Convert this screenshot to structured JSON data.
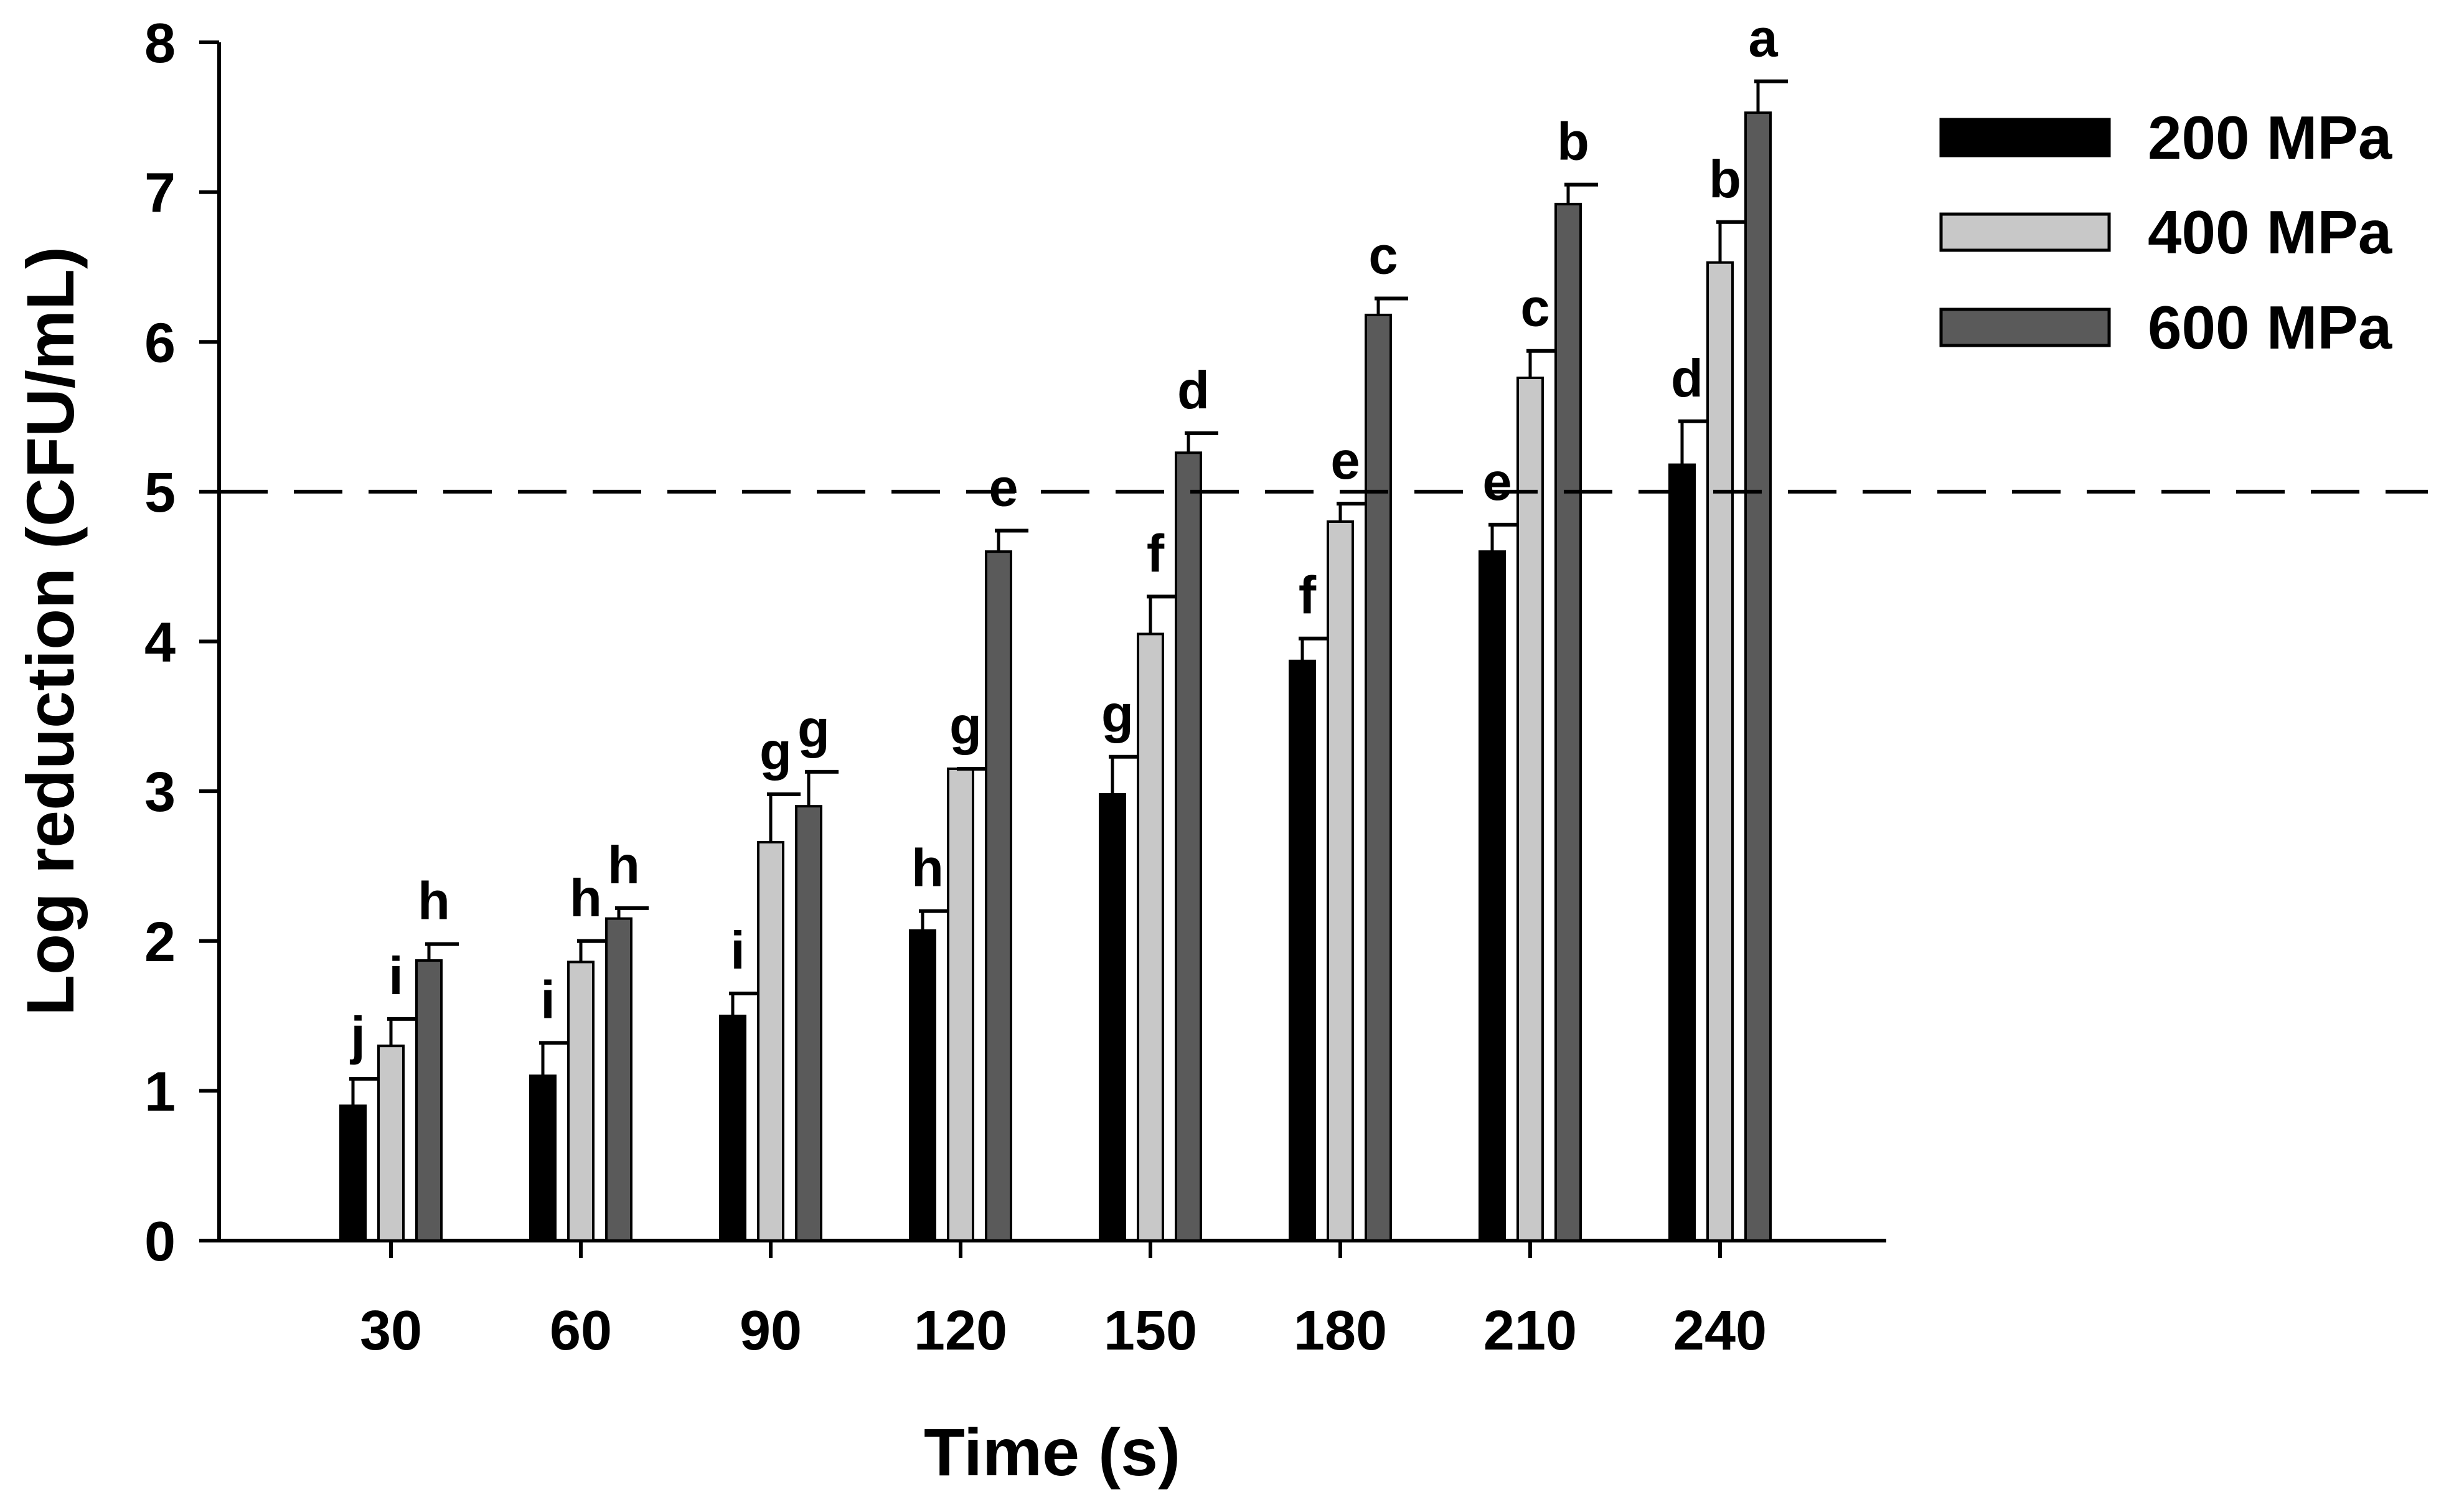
{
  "chart_data": {
    "type": "bar",
    "title": "",
    "xlabel": "Time (s)",
    "ylabel": "Log reduction (CFU/mL)",
    "ylim": [
      0,
      8
    ],
    "yticks": [
      "0",
      "1",
      "2",
      "3",
      "4",
      "5",
      "6",
      "7",
      "8"
    ],
    "categories": [
      "30",
      "60",
      "90",
      "120",
      "150",
      "180",
      "210",
      "240"
    ],
    "reference_line": {
      "y": 5,
      "style": "dashed"
    },
    "legend_position": "top-right",
    "series": [
      {
        "name": "200 MPa",
        "color": "#000000",
        "values": [
          0.9,
          1.1,
          1.5,
          2.07,
          2.98,
          3.87,
          4.6,
          5.18
        ],
        "errors": [
          0.18,
          0.22,
          0.15,
          0.13,
          0.25,
          0.15,
          0.18,
          0.29
        ],
        "labels": [
          "j",
          "i",
          "i",
          "h",
          "g",
          "f",
          "e",
          "d"
        ]
      },
      {
        "name": "400 MPa",
        "color": "#c8c8c8",
        "values": [
          1.3,
          1.86,
          2.66,
          3.15,
          4.05,
          4.8,
          5.76,
          6.53
        ],
        "errors": [
          0.18,
          0.14,
          0.32,
          0.0,
          0.25,
          0.12,
          0.18,
          0.27
        ],
        "labels": [
          "i",
          "h",
          "g",
          "g",
          "f",
          "e",
          "c",
          "b"
        ]
      },
      {
        "name": "600 MPa",
        "color": "#5a5a5a",
        "values": [
          1.87,
          2.15,
          2.9,
          4.6,
          5.26,
          6.18,
          6.92,
          7.53
        ],
        "errors": [
          0.11,
          0.07,
          0.23,
          0.14,
          0.13,
          0.11,
          0.13,
          0.21
        ],
        "labels": [
          "h",
          "h",
          "g",
          "e",
          "d",
          "c",
          "b",
          "a"
        ]
      }
    ]
  }
}
